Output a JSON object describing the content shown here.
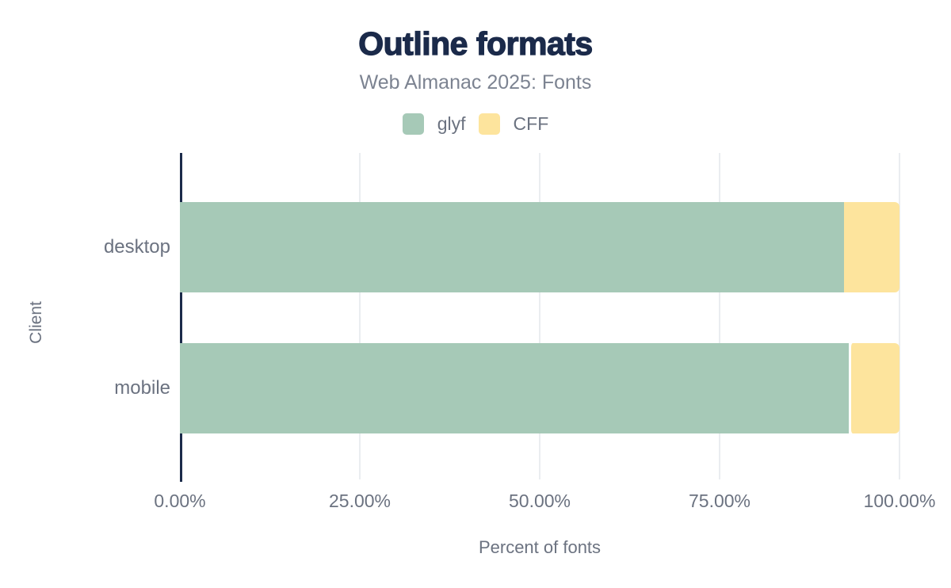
{
  "chart_data": {
    "type": "bar",
    "orientation": "horizontal",
    "stacked": true,
    "title": "Outline formats",
    "subtitle": "Web Almanac 2025: Fonts",
    "xlabel": "Percent of fonts",
    "ylabel": "Client",
    "categories": [
      "desktop",
      "mobile"
    ],
    "series": [
      {
        "name": "glyf",
        "color": "#a6c9b7",
        "values": [
          92.3,
          93.0
        ]
      },
      {
        "name": "CFF",
        "color": "#fde49d",
        "values": [
          7.7,
          7.0
        ]
      }
    ],
    "x_ticks": [
      "0.00%",
      "25.00%",
      "50.00%",
      "75.00%",
      "100.00%"
    ],
    "x_tick_values": [
      0,
      25,
      50,
      75,
      100
    ],
    "xlim": [
      0,
      100
    ],
    "grid": "vertical",
    "legend_position": "top"
  },
  "colors": {
    "title": "#1b2a4a",
    "axis_line": "#1c2b4a",
    "subtitle_text": "#7c8391",
    "tick_label_text": "#6b7280",
    "gridline": "#eaedf0",
    "background": "#ffffff"
  }
}
